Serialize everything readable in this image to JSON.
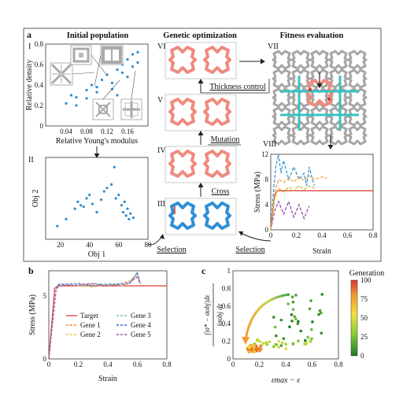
{
  "colors": {
    "pink": "#f08a7e",
    "pink_dark": "#e4685c",
    "blue": "#2f8fd6",
    "blue_dark": "#1f6fb0",
    "gray": "#9a9a9a",
    "teal": "#39c0c0",
    "red": "#d9352e",
    "dot_blue": "#2b8cd1"
  },
  "panel_a": {
    "letter": "a",
    "hdr_init": "Initial population",
    "hdr_genetic": "Genetic optimization",
    "hdr_fitness": "Fitness evaluation",
    "label_I": "I",
    "label_II": "II",
    "label_III": "III",
    "label_IV": "IV",
    "label_V": "V",
    "label_VI": "VI",
    "label_VII": "VII",
    "label_VIII": "VIII",
    "thickness_control": "Thickness control",
    "mutation": "Mutation",
    "cross": "Cross",
    "selection_left": "Selection",
    "selection_right": "Selection",
    "plotI": {
      "xlabel": "Relative Young's modulus",
      "ylabel": "Relative density",
      "xticks": [
        "0.04",
        "0.08",
        "0.12",
        "0.16"
      ],
      "yticks": [
        "0.8",
        "0.6",
        "0.4",
        "0.2",
        "0"
      ]
    },
    "plotII": {
      "xlabel": "Obj 1",
      "ylabel": "Obj 2",
      "xticks": [
        "20",
        "40",
        "60",
        "80"
      ]
    },
    "plotVIII": {
      "xlabel": "Strain",
      "ylabel": "Stress (MPa)",
      "xticks": [
        "0",
        "0.2",
        "0.4",
        "0.6",
        "0.8"
      ],
      "yticks": [
        "12",
        "8",
        "4",
        "0"
      ]
    }
  },
  "panel_b": {
    "letter": "b",
    "xlabel": "Strain",
    "ylabel": "Stress (MPa)",
    "xticks": [
      "0",
      "0.2",
      "0.4",
      "0.6",
      "0.8"
    ],
    "yticks": [
      "5",
      "0"
    ],
    "legend": [
      "Target",
      "Gene 1",
      "Gene 2",
      "Gene 3",
      "Gene 4",
      "Gene 5"
    ]
  },
  "panel_c": {
    "letter": "c",
    "xlabel": "εmax − ε",
    "ylabel_num": "∫|σ* − σobj|dε",
    "ylabel_den": "∫σobj dε",
    "xticks": [
      "0",
      "0.2",
      "0.4",
      "0.6",
      "0.8"
    ],
    "yticks": [
      "1",
      "0.8",
      "0.6",
      "0.4",
      "0.2",
      "0"
    ],
    "colorbar_title": "Generation",
    "colorbar_ticks": [
      "100",
      "75",
      "50",
      "25",
      "0"
    ]
  },
  "chart_data": [
    {
      "type": "scatter",
      "id": "I",
      "xlabel": "Relative Young's modulus",
      "ylabel": "Relative density",
      "xlim": [
        0,
        0.2
      ],
      "ylim": [
        0,
        0.8
      ],
      "x": [
        0.04,
        0.05,
        0.06,
        0.08,
        0.09,
        0.1,
        0.11,
        0.12,
        0.13,
        0.14,
        0.15,
        0.16,
        0.17,
        0.18,
        0.12,
        0.14,
        0.16,
        0.17,
        0.06,
        0.08,
        0.1,
        0.15,
        0.18,
        0.13
      ],
      "y": [
        0.22,
        0.3,
        0.28,
        0.35,
        0.4,
        0.38,
        0.45,
        0.5,
        0.42,
        0.55,
        0.6,
        0.65,
        0.7,
        0.72,
        0.25,
        0.3,
        0.48,
        0.58,
        0.2,
        0.27,
        0.33,
        0.52,
        0.62,
        0.36
      ]
    },
    {
      "type": "scatter",
      "id": "II",
      "xlabel": "Obj 1",
      "ylabel": "Obj 2",
      "xlim": [
        10,
        80
      ],
      "x": [
        18,
        24,
        30,
        32,
        34,
        38,
        40,
        42,
        45,
        50,
        52,
        55,
        57,
        60,
        62,
        63,
        64,
        65,
        66,
        67,
        68,
        70,
        58,
        48,
        36
      ],
      "y": [
        0.1,
        0.2,
        0.35,
        0.45,
        0.4,
        0.5,
        0.55,
        0.42,
        0.3,
        0.6,
        0.65,
        0.7,
        0.95,
        0.55,
        0.4,
        0.3,
        0.45,
        0.25,
        0.35,
        0.2,
        0.28,
        0.22,
        0.5,
        0.48,
        0.38
      ]
    },
    {
      "type": "line",
      "id": "VIII",
      "xlabel": "Strain",
      "ylabel": "Stress (MPa)",
      "xlim": [
        0,
        0.8
      ],
      "ylim": [
        0,
        12
      ],
      "series": [
        {
          "color": "#d9352e",
          "x": [
            0,
            0.03,
            0.05,
            0.8
          ],
          "y": [
            0,
            5.5,
            6.2,
            6.2
          ]
        },
        {
          "color": "#2f8fd6",
          "x": [
            0,
            0.02,
            0.04,
            0.06,
            0.08,
            0.1,
            0.14,
            0.18,
            0.22,
            0.26,
            0.28,
            0.3,
            0.34
          ],
          "y": [
            0,
            6,
            10,
            12,
            9,
            11,
            8,
            10,
            8,
            9,
            7,
            10,
            7
          ]
        },
        {
          "color": "#f0a030",
          "x": [
            0,
            0.03,
            0.06,
            0.1,
            0.14,
            0.18,
            0.22,
            0.26,
            0.3,
            0.34,
            0.4,
            0.44
          ],
          "y": [
            0,
            6,
            8,
            7.5,
            8.2,
            7.6,
            8.4,
            7.8,
            8.6,
            8,
            8.4,
            8.2
          ]
        },
        {
          "color": "#8a3fb0",
          "x": [
            0,
            0.03,
            0.06,
            0.1,
            0.14,
            0.18,
            0.22,
            0.26,
            0.3
          ],
          "y": [
            0,
            3,
            4.5,
            2.5,
            4.5,
            2,
            4,
            1.8,
            3.8
          ]
        },
        {
          "color": "#e0b020",
          "x": [
            0,
            0.03,
            0.06,
            0.1,
            0.14,
            0.18,
            0.22,
            0.26,
            0.3,
            0.34
          ],
          "y": [
            0,
            5,
            6.6,
            6,
            6.8,
            6.2,
            7,
            6.4,
            7,
            6.6
          ]
        }
      ]
    },
    {
      "type": "line",
      "id": "b",
      "xlabel": "Strain",
      "ylabel": "Stress (MPa)",
      "xlim": [
        0,
        0.8
      ],
      "ylim": [
        0,
        7
      ],
      "series": [
        {
          "name": "Target",
          "color": "#e34a4a",
          "x": [
            0,
            0.04,
            0.06,
            0.8
          ],
          "y": [
            0,
            5.6,
            5.8,
            5.8
          ]
        },
        {
          "name": "Gene 1",
          "color": "#f08a3a",
          "x": [
            0,
            0.05,
            0.07,
            0.2,
            0.3,
            0.4,
            0.5,
            0.55,
            0.6,
            0.62
          ],
          "y": [
            0,
            5.6,
            5.9,
            5.8,
            6,
            5.8,
            6,
            6.2,
            6.8,
            6
          ]
        },
        {
          "name": "Gene 2",
          "color": "#e8c43a",
          "x": [
            0,
            0.05,
            0.07,
            0.2,
            0.3,
            0.4,
            0.5,
            0.55,
            0.6,
            0.62
          ],
          "y": [
            0,
            5.5,
            5.8,
            5.9,
            5.7,
            5.9,
            5.8,
            6,
            6.6,
            5.9
          ]
        },
        {
          "name": "Gene 3",
          "color": "#7fbfbf",
          "x": [
            0,
            0.05,
            0.07,
            0.2,
            0.3,
            0.4,
            0.5,
            0.55,
            0.6,
            0.62
          ],
          "y": [
            0,
            5.7,
            6,
            5.8,
            5.9,
            6,
            5.8,
            6.1,
            6.7,
            6
          ]
        },
        {
          "name": "Gene 4",
          "color": "#3a6fd0",
          "x": [
            0,
            0.05,
            0.07,
            0.2,
            0.3,
            0.4,
            0.5,
            0.55,
            0.6,
            0.62
          ],
          "y": [
            0,
            5.6,
            5.9,
            6,
            5.8,
            5.9,
            6,
            6,
            6.9,
            5.9
          ]
        },
        {
          "name": "Gene 5",
          "color": "#a14fb0",
          "x": [
            0,
            0.05,
            0.07,
            0.2,
            0.3,
            0.4,
            0.5,
            0.55,
            0.6,
            0.62
          ],
          "y": [
            0,
            5.5,
            5.8,
            5.9,
            6,
            5.8,
            5.9,
            6.1,
            6.5,
            6
          ]
        }
      ]
    },
    {
      "type": "scatter",
      "id": "c",
      "xlabel": "εmax − ε",
      "xlim": [
        0,
        0.8
      ],
      "ylim": [
        0,
        1
      ],
      "colorbar": {
        "label": "Generation",
        "min": 0,
        "max": 100
      }
    }
  ]
}
